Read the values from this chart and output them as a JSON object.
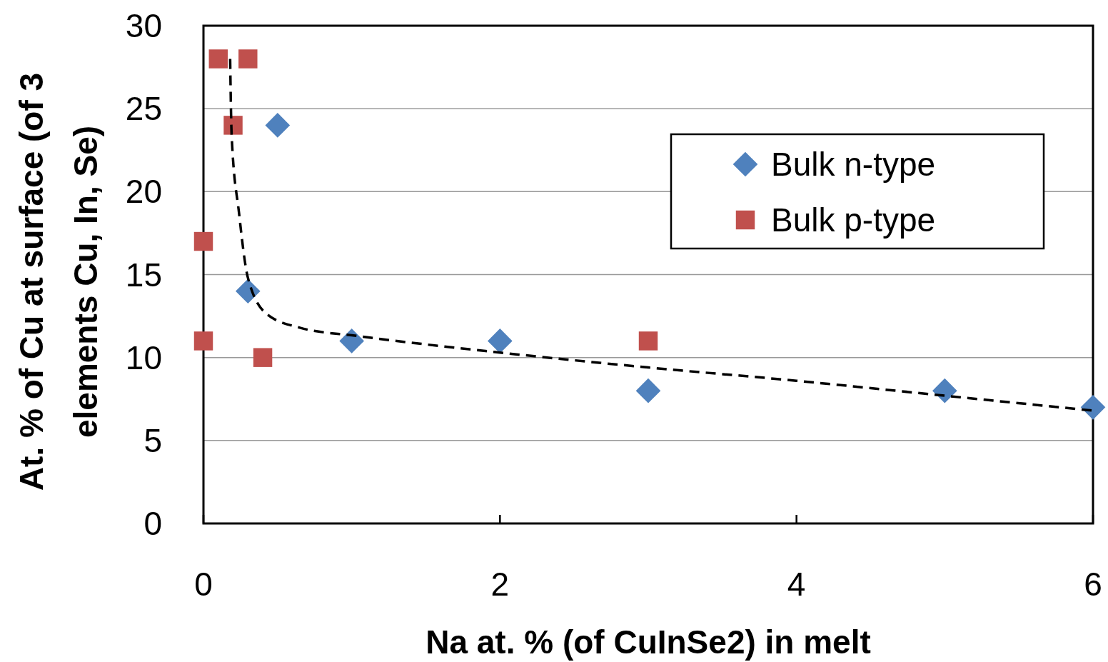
{
  "chart_data": {
    "type": "scatter",
    "xlabel": "Na at. % (of CuInSe2) in melt",
    "ylabel": "At. % of Cu at surface (of 3 elements Cu, In, Se)",
    "xlim": [
      0,
      6
    ],
    "xticks": [
      0,
      2,
      4,
      6
    ],
    "ylim": [
      0,
      30
    ],
    "yticks": [
      0,
      5,
      10,
      15,
      20,
      25,
      30
    ],
    "grid": "y",
    "legend": "top right",
    "series": [
      {
        "name": "Bulk n-type",
        "color": "#4f81bd",
        "marker": "diamond",
        "x": [
          0.5,
          0.3,
          1,
          2,
          3,
          5,
          6
        ],
        "values": [
          24,
          14,
          11,
          11,
          8,
          8,
          7
        ]
      },
      {
        "name": "Bulk p-type",
        "color": "#c0504d",
        "marker": "square",
        "x": [
          0.1,
          0.3,
          0.2,
          0,
          0,
          0.4,
          3
        ],
        "values": [
          28,
          28,
          24,
          17,
          11,
          10,
          11
        ]
      },
      {
        "type": "line",
        "color": "#000000",
        "marker": "none",
        "line_style": "dashed",
        "x": [
          0.18,
          0.19,
          0.24,
          0.3,
          0.43,
          0.65,
          1.04,
          2,
          3,
          4,
          5,
          6
        ],
        "values": [
          28,
          23.4,
          18.7,
          14.8,
          12.6,
          11.8,
          11.3,
          10.3,
          9.4,
          8.6,
          7.7,
          6.8
        ]
      }
    ]
  }
}
